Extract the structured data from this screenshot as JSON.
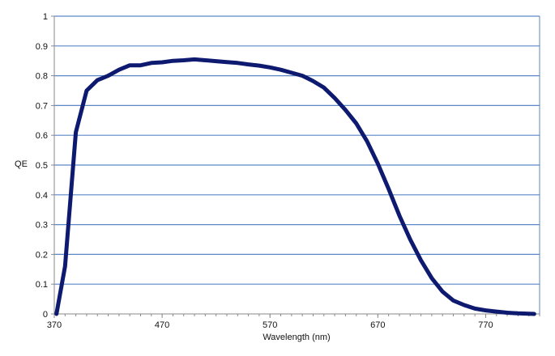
{
  "chart_data": {
    "type": "line",
    "title": "",
    "xlabel": "Wavelength (nm)",
    "ylabel": "QE",
    "xlim": [
      370,
      820
    ],
    "ylim": [
      0,
      1
    ],
    "x_ticks": [
      370,
      470,
      570,
      670,
      770
    ],
    "y_ticks": [
      0,
      0.1,
      0.2,
      0.3,
      0.4,
      0.5,
      0.6,
      0.7,
      0.8,
      0.9,
      1
    ],
    "grid": "horizontal",
    "colors": {
      "line": "#0d1a70",
      "grid": "#5b86c7",
      "axis": "#8a8a8a"
    },
    "series": [
      {
        "x": [
          372,
          380,
          390,
          400,
          410,
          420,
          430,
          440,
          450,
          460,
          470,
          480,
          490,
          500,
          510,
          520,
          530,
          540,
          550,
          560,
          570,
          580,
          590,
          600,
          610,
          620,
          630,
          640,
          650,
          660,
          670,
          680,
          690,
          700,
          710,
          720,
          730,
          740,
          750,
          760,
          770,
          780,
          790,
          800,
          815
        ],
        "y": [
          0.0,
          0.16,
          0.61,
          0.75,
          0.785,
          0.8,
          0.82,
          0.835,
          0.835,
          0.843,
          0.845,
          0.85,
          0.852,
          0.855,
          0.852,
          0.849,
          0.846,
          0.843,
          0.838,
          0.834,
          0.828,
          0.82,
          0.81,
          0.8,
          0.782,
          0.76,
          0.725,
          0.685,
          0.64,
          0.58,
          0.505,
          0.42,
          0.33,
          0.25,
          0.18,
          0.12,
          0.075,
          0.045,
          0.03,
          0.018,
          0.012,
          0.008,
          0.004,
          0.002,
          0.0
        ]
      }
    ]
  }
}
